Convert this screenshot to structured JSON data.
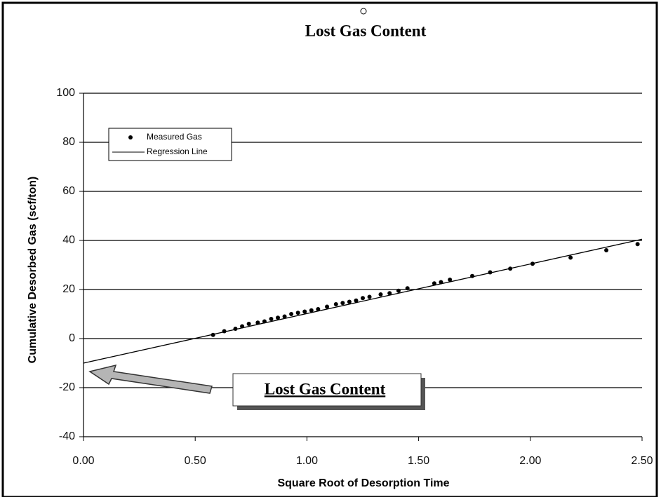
{
  "chart_data": {
    "type": "scatter",
    "title": "Lost Gas Content",
    "x_label": "Square Root of Desorption Time",
    "y_label": "Cumulative Desorbed Gas (scf/ton)",
    "xlim": [
      0,
      2.5
    ],
    "ylim": [
      -40,
      100
    ],
    "xticks": [
      {
        "value": 0,
        "label": "0.00"
      },
      {
        "value": 0.5,
        "label": "0.50"
      },
      {
        "value": 1,
        "label": "1.00"
      },
      {
        "value": 1.5,
        "label": "1.50"
      },
      {
        "value": 2,
        "label": "2.00"
      },
      {
        "value": 2.5,
        "label": "2.50"
      }
    ],
    "yticks": [
      -40,
      -20,
      0,
      20,
      40,
      60,
      80,
      100
    ],
    "grid": true,
    "legend": "upper-left",
    "annotation": "Lost Gas Content",
    "series": [
      {
        "name": "Measured Gas",
        "type": "scatter",
        "color": "#000000",
        "x": [
          0.58,
          0.63,
          0.68,
          0.71,
          0.74,
          0.78,
          0.81,
          0.84,
          0.87,
          0.9,
          0.93,
          0.96,
          0.99,
          1.02,
          1.05,
          1.09,
          1.13,
          1.16,
          1.19,
          1.22,
          1.25,
          1.28,
          1.33,
          1.37,
          1.41,
          1.45,
          1.57,
          1.6,
          1.64,
          1.74,
          1.82,
          1.91,
          2.01,
          2.18,
          2.34,
          2.48
        ],
        "values": [
          1.5,
          3,
          4,
          5,
          6,
          6.5,
          7,
          8,
          8.5,
          9,
          10,
          10.5,
          11,
          11.5,
          12,
          13,
          14,
          14.5,
          15,
          15.5,
          16.5,
          17,
          18,
          18.5,
          19.5,
          20.5,
          22.5,
          23,
          24,
          25.5,
          27,
          28.5,
          30.5,
          33,
          36,
          38.5
        ]
      },
      {
        "name": "Regression Line",
        "type": "line",
        "color": "#000000",
        "x": [
          0,
          2.5
        ],
        "values": [
          -10,
          40.5
        ]
      }
    ]
  }
}
